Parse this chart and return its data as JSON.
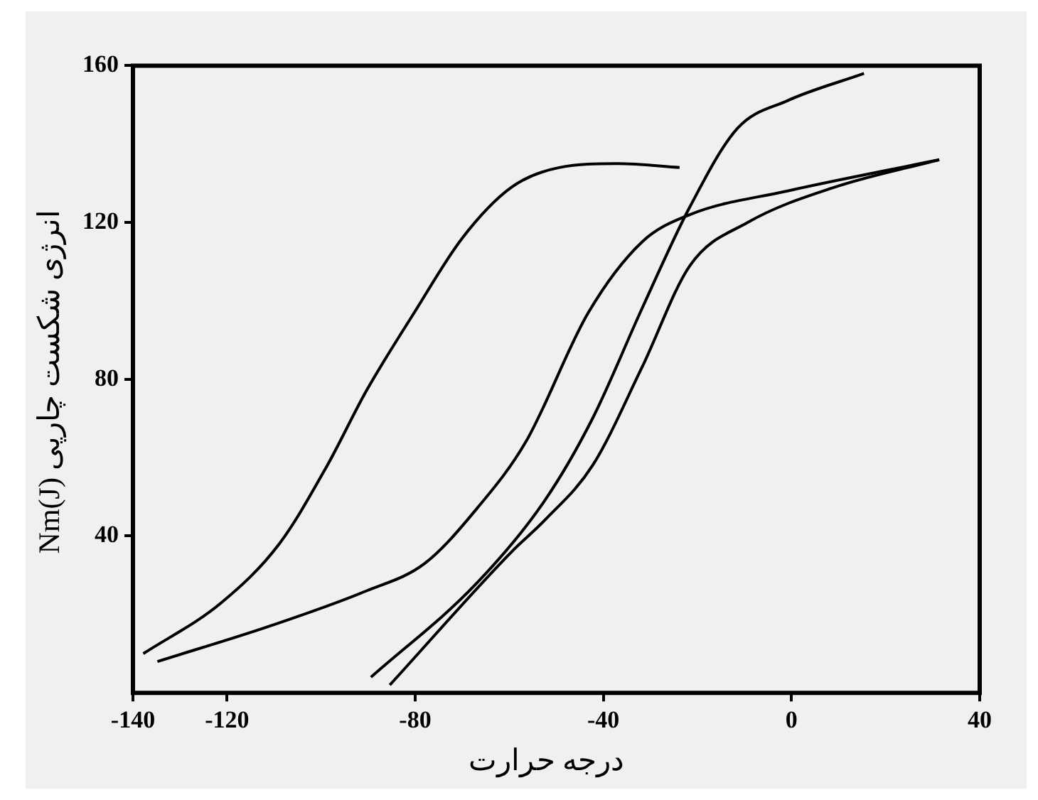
{
  "chart_data": {
    "type": "line",
    "xlabel": "درجه حرارت",
    "ylabel": "انرژی شکست چارپی Nm(J)",
    "xlim": [
      -140,
      40
    ],
    "ylim": [
      0,
      160
    ],
    "xticks": [
      -140,
      -120,
      -80,
      -40,
      0,
      40
    ],
    "yticks": [
      40,
      80,
      120,
      160
    ],
    "series": [
      {
        "color": "#000000",
        "x": [
          -137.8,
          -121.2,
          -108.9,
          -98.7,
          -90.4,
          -80.2,
          -70,
          -59.5,
          -49.4,
          -37,
          -23.8
        ],
        "values": [
          10,
          23,
          38,
          58,
          77,
          97,
          116,
          129,
          134,
          135,
          134
        ]
      },
      {
        "color": "#000000",
        "x": [
          -134.8,
          -111,
          -90.4,
          -78,
          -66.9,
          -56.5,
          -43.2,
          -31.8,
          -21.6,
          -1,
          31.4
        ],
        "values": [
          8,
          17,
          26,
          33,
          47,
          64,
          97,
          115,
          122,
          128,
          136
        ]
      },
      {
        "color": "#000000",
        "x": [
          -89.4,
          -66.9,
          -52.5,
          -42.3,
          -31.8,
          -21.6,
          -11.5,
          -1,
          15.4
        ],
        "values": [
          4,
          28,
          49,
          70,
          98,
          124,
          144,
          151,
          158
        ]
      },
      {
        "color": "#000000",
        "x": [
          -85.4,
          -59.5,
          -52.5,
          -42.3,
          -31.8,
          -21.6,
          -9.3,
          9.2,
          31.4
        ],
        "values": [
          2,
          36,
          44,
          58,
          83,
          109,
          120,
          129,
          136
        ]
      }
    ]
  }
}
